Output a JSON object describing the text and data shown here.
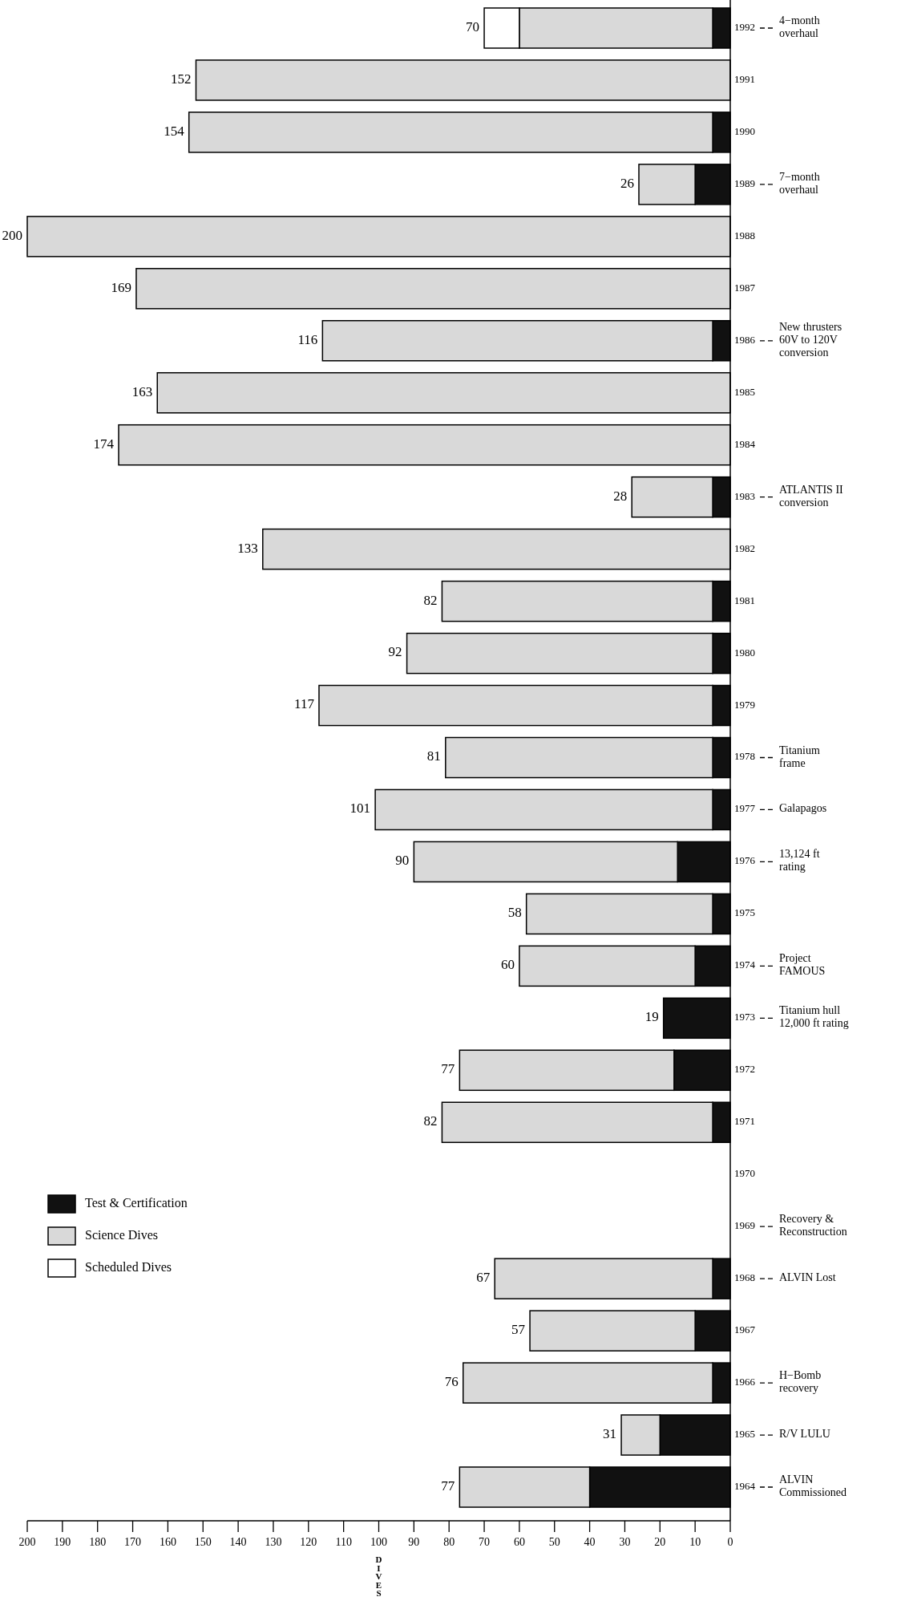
{
  "chart_data": {
    "type": "bar",
    "stacked": true,
    "orientation": "horizontal",
    "xlabel": "DIVES",
    "legend": "bottom left",
    "categories": [
      "1992",
      "1991",
      "1990",
      "1989",
      "1988",
      "1987",
      "1986",
      "1985",
      "1984",
      "1983",
      "1982",
      "1981",
      "1980",
      "1979",
      "1978",
      "1977",
      "1976",
      "1975",
      "1974",
      "1973",
      "1972",
      "1971",
      "1970",
      "1969",
      "1968",
      "1967",
      "1966",
      "1965",
      "1964"
    ],
    "series": [
      {
        "name": "Test & Certification",
        "color": "#111111",
        "values": [
          5,
          null,
          5,
          10,
          null,
          null,
          5,
          null,
          null,
          5,
          null,
          5,
          5,
          5,
          5,
          5,
          15,
          5,
          10,
          19,
          16,
          5,
          null,
          null,
          5,
          10,
          5,
          20,
          40
        ]
      },
      {
        "name": "Science Dives",
        "color": "#d9d9d9",
        "values": [
          55,
          152,
          149,
          16,
          200,
          169,
          111,
          163,
          174,
          23,
          133,
          77,
          87,
          112,
          76,
          96,
          75,
          53,
          50,
          null,
          61,
          77,
          null,
          null,
          62,
          47,
          71,
          11,
          37
        ]
      },
      {
        "name": "Scheduled Dives",
        "color": "#ffffff",
        "values": [
          10,
          null,
          null,
          null,
          null,
          null,
          null,
          null,
          null,
          null,
          null,
          null,
          null,
          null,
          null,
          null,
          null,
          null,
          null,
          null,
          null,
          null,
          null,
          null,
          null,
          null,
          null,
          null,
          null
        ]
      }
    ],
    "totals": [
      "70",
      "152",
      "154",
      "26",
      "200",
      "169",
      "116",
      "163",
      "174",
      "28",
      "133",
      "82",
      "92",
      "117",
      "81",
      "101",
      "90",
      "58",
      "60",
      "19",
      "77",
      "82",
      null,
      null,
      "67",
      "57",
      "76",
      "31",
      "77"
    ],
    "xlim": [
      200,
      0
    ],
    "xticks": [
      200,
      190,
      180,
      170,
      160,
      150,
      140,
      130,
      120,
      110,
      100,
      90,
      80,
      70,
      60,
      50,
      40,
      30,
      20,
      10,
      0
    ],
    "ref_lines": [
      {
        "axis": "y",
        "value": "1992",
        "label": "4−month\noverhaul",
        "line_style": "dashed"
      },
      {
        "axis": "y",
        "value": "1989",
        "label": "7−month\noverhaul",
        "line_style": "dashed"
      },
      {
        "axis": "y",
        "value": "1986",
        "label": "New thrusters\n60V to 120V\nconversion",
        "line_style": "dashed"
      },
      {
        "axis": "y",
        "value": "1983",
        "label": "ATLANTIS II\nconversion",
        "line_style": "dashed"
      },
      {
        "axis": "y",
        "value": "1978",
        "label": "Titanium\nframe",
        "line_style": "dashed"
      },
      {
        "axis": "y",
        "value": "1977",
        "label": "Galapagos",
        "line_style": "dashed"
      },
      {
        "axis": "y",
        "value": "1976",
        "label": "13,124 ft\nrating",
        "line_style": "dashed"
      },
      {
        "axis": "y",
        "value": "1974",
        "label": "Project\nFAMOUS",
        "line_style": "dashed"
      },
      {
        "axis": "y",
        "value": "1973",
        "label": "Titanium hull\n12,000 ft rating",
        "line_style": "dashed"
      },
      {
        "axis": "y",
        "value": "1969",
        "label": "Recovery &\nReconstruction",
        "line_style": "dashed"
      },
      {
        "axis": "y",
        "value": "1968",
        "label": "ALVIN Lost",
        "line_style": "dashed"
      },
      {
        "axis": "y",
        "value": "1966",
        "label": "H−Bomb\nrecovery",
        "line_style": "dashed"
      },
      {
        "axis": "y",
        "value": "1965",
        "label": "R/V LULU",
        "line_style": "dashed"
      },
      {
        "axis": "y",
        "value": "1964",
        "label": "ALVIN\nCommissioned",
        "line_style": "dashed"
      }
    ]
  }
}
